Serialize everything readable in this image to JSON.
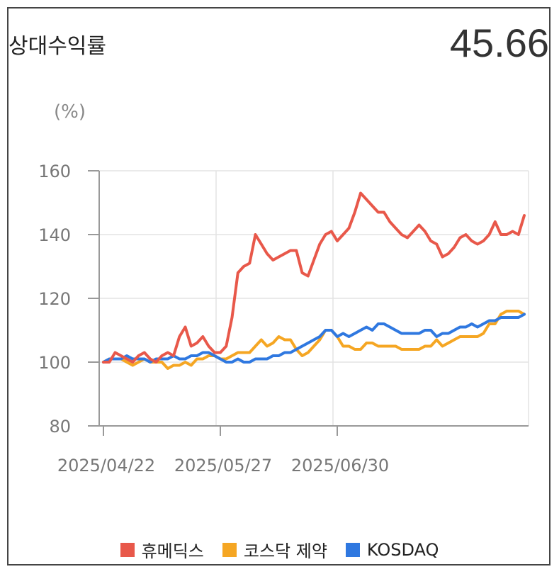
{
  "header": {
    "title": "상대수익률",
    "value": "45.66"
  },
  "colors": {
    "humedix": "#e8584a",
    "kosdak": "#f5a623",
    "kosdaq": "#2f78e0"
  },
  "chart_data": {
    "type": "line",
    "ylabel": "(%)",
    "ylim": [
      80,
      160
    ],
    "yticks": [
      80,
      100,
      120,
      140,
      160
    ],
    "xtick_labels": [
      "2025/04/22",
      "2025/05/27",
      "2025/06/30"
    ],
    "xtick_positions": [
      1,
      21,
      41
    ],
    "grid": true,
    "legend_position": "bottom",
    "series": [
      {
        "name": "휴메딕스",
        "color": "#e8584a",
        "values": [
          100,
          100,
          103,
          102,
          101,
          100,
          102,
          103,
          101,
          100,
          102,
          103,
          102,
          108,
          111,
          105,
          106,
          108,
          105,
          103,
          103,
          105,
          114,
          128,
          130,
          131,
          140,
          137,
          134,
          132,
          133,
          134,
          135,
          135,
          128,
          127,
          132,
          137,
          140,
          141,
          138,
          140,
          142,
          147,
          153,
          151,
          149,
          147,
          147,
          144,
          142,
          140,
          139,
          141,
          143,
          141,
          138,
          137,
          133,
          134,
          136,
          139,
          140,
          138,
          137,
          138,
          140,
          144,
          140,
          140,
          141,
          140,
          146
        ]
      },
      {
        "name": "코스닥 제약",
        "color": "#f5a623",
        "values": [
          100,
          101,
          101,
          101,
          100,
          99,
          100,
          101,
          100,
          100,
          100,
          98,
          99,
          99,
          100,
          99,
          101,
          101,
          102,
          102,
          101,
          101,
          102,
          103,
          103,
          103,
          105,
          107,
          105,
          106,
          108,
          107,
          107,
          104,
          102,
          103,
          105,
          107,
          110,
          110,
          108,
          105,
          105,
          104,
          104,
          106,
          106,
          105,
          105,
          105,
          105,
          104,
          104,
          104,
          104,
          105,
          105,
          107,
          105,
          106,
          107,
          108,
          108,
          108,
          108,
          109,
          112,
          112,
          115,
          116,
          116,
          116,
          115
        ]
      },
      {
        "name": "KOSDAQ",
        "color": "#2f78e0",
        "values": [
          100,
          101,
          101,
          101,
          102,
          101,
          101,
          101,
          100,
          101,
          101,
          101,
          102,
          101,
          101,
          102,
          102,
          103,
          103,
          102,
          101,
          100,
          100,
          101,
          100,
          100,
          101,
          101,
          101,
          102,
          102,
          103,
          103,
          104,
          105,
          106,
          107,
          108,
          110,
          110,
          108,
          109,
          108,
          109,
          110,
          111,
          110,
          112,
          112,
          111,
          110,
          109,
          109,
          109,
          109,
          110,
          110,
          108,
          109,
          109,
          110,
          111,
          111,
          112,
          111,
          112,
          113,
          113,
          114,
          114,
          114,
          114,
          115
        ]
      }
    ]
  }
}
